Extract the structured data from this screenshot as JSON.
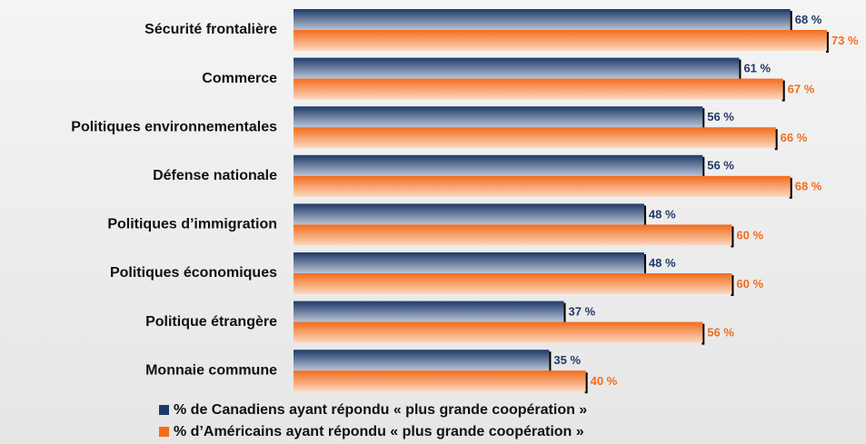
{
  "chart_data": {
    "type": "bar",
    "orientation": "horizontal",
    "categories": [
      "Sécurité frontalière",
      "Commerce",
      "Politiques environnementales",
      "Défense nationale",
      "Politiques d’immigration",
      "Politiques économiques",
      "Politique étrangère",
      "Monnaie commune"
    ],
    "series": [
      {
        "name": "% de Canadiens ayant répondu « plus grande coopération »",
        "color": "#1f3a68",
        "values": [
          68,
          61,
          56,
          56,
          48,
          48,
          37,
          35
        ],
        "value_labels": [
          "68 %",
          "61 %",
          "56 %",
          "56 %",
          "48 %",
          "48 %",
          "37 %",
          "35 %"
        ]
      },
      {
        "name": "% d’Américains ayant répondu « plus grande coopération »",
        "color": "#f26c1c",
        "values": [
          73,
          67,
          66,
          68,
          60,
          60,
          56,
          40
        ],
        "value_labels": [
          "73 %",
          "67 %",
          "66 %",
          "68 %",
          "60 %",
          "60 %",
          "56 %",
          "40 %"
        ]
      }
    ]
  }
}
